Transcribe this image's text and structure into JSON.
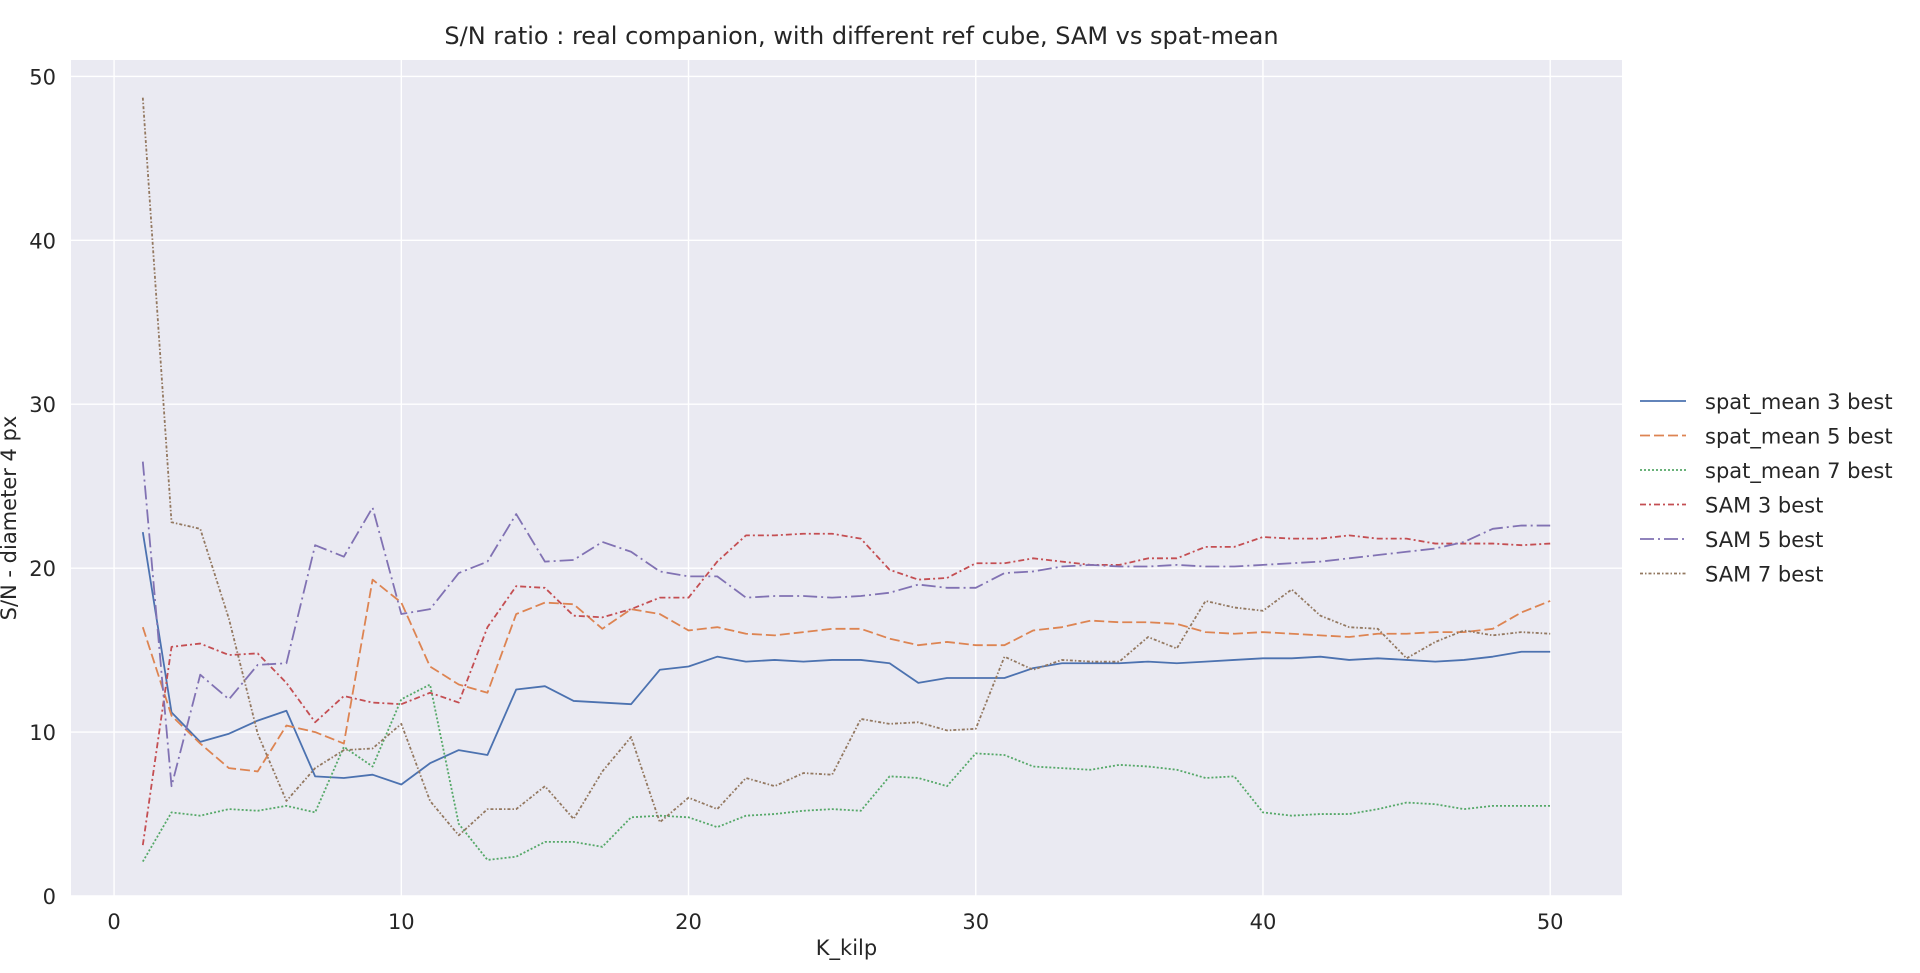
{
  "chart_data": {
    "type": "line",
    "title": "S/N ratio : real companion, with different ref cube, SAM vs spat-mean",
    "xlabel": "K_kilp",
    "ylabel": "S/N - diameter 4 px",
    "xlim": [
      -1.5,
      52.5
    ],
    "ylim": [
      0,
      51
    ],
    "xticks": [
      0,
      10,
      20,
      30,
      40,
      50
    ],
    "yticks": [
      0,
      10,
      20,
      30,
      40,
      50
    ],
    "grid": true,
    "legend_position": "right-outside",
    "x": [
      1,
      2,
      3,
      4,
      5,
      6,
      7,
      8,
      9,
      10,
      11,
      12,
      13,
      14,
      15,
      16,
      17,
      18,
      19,
      20,
      21,
      22,
      23,
      24,
      25,
      26,
      27,
      28,
      29,
      30,
      31,
      32,
      33,
      34,
      35,
      36,
      37,
      38,
      39,
      40,
      41,
      42,
      43,
      44,
      45,
      46,
      47,
      48,
      49,
      50
    ],
    "series": [
      {
        "name": "spat_mean 3 best",
        "color": "#4c72b0",
        "dash": "solid",
        "values": [
          22.2,
          11.2,
          9.4,
          9.9,
          10.7,
          11.3,
          7.3,
          7.2,
          7.4,
          6.8,
          8.1,
          8.9,
          8.6,
          12.6,
          12.8,
          11.9,
          11.8,
          11.7,
          13.8,
          14.0,
          14.6,
          14.3,
          14.4,
          14.3,
          14.4,
          14.4,
          14.2,
          13.0,
          13.3,
          13.3,
          13.3,
          13.9,
          14.2,
          14.2,
          14.2,
          14.3,
          14.2,
          14.3,
          14.4,
          14.5,
          14.5,
          14.6,
          14.4,
          14.5,
          14.4,
          14.3,
          14.4,
          14.6,
          14.9,
          14.9
        ]
      },
      {
        "name": "spat_mean 5 best",
        "color": "#dd8452",
        "dash": "dashed",
        "values": [
          16.4,
          11.0,
          9.3,
          7.8,
          7.6,
          10.4,
          10.0,
          9.3,
          19.3,
          17.9,
          14.0,
          12.9,
          12.4,
          17.2,
          17.9,
          17.8,
          16.3,
          17.5,
          17.2,
          16.2,
          16.4,
          16.0,
          15.9,
          16.1,
          16.3,
          16.3,
          15.7,
          15.3,
          15.5,
          15.3,
          15.3,
          16.2,
          16.4,
          16.8,
          16.7,
          16.7,
          16.6,
          16.1,
          16.0,
          16.1,
          16.0,
          15.9,
          15.8,
          16.0,
          16.0,
          16.1,
          16.1,
          16.3,
          17.3,
          18.0
        ]
      },
      {
        "name": "spat_mean 7 best",
        "color": "#55a868",
        "dash": "dotted",
        "values": [
          2.1,
          5.1,
          4.9,
          5.3,
          5.2,
          5.5,
          5.1,
          9.1,
          7.9,
          12.0,
          12.9,
          4.4,
          2.2,
          2.4,
          3.3,
          3.3,
          3.0,
          4.8,
          4.9,
          4.8,
          4.2,
          4.9,
          5.0,
          5.2,
          5.3,
          5.2,
          7.3,
          7.2,
          6.7,
          8.7,
          8.6,
          7.9,
          7.8,
          7.7,
          8.0,
          7.9,
          7.7,
          7.2,
          7.3,
          5.1,
          4.9,
          5.0,
          5.0,
          5.3,
          5.7,
          5.6,
          5.3,
          5.5,
          5.5,
          5.5
        ]
      },
      {
        "name": "SAM 3 best",
        "color": "#c44e52",
        "dash": "dashdot",
        "values": [
          3.1,
          15.2,
          15.4,
          14.7,
          14.8,
          13.0,
          10.6,
          12.2,
          11.8,
          11.7,
          12.4,
          11.8,
          16.4,
          18.9,
          18.8,
          17.1,
          17.0,
          17.5,
          18.2,
          18.2,
          20.4,
          22.0,
          22.0,
          22.1,
          22.1,
          21.8,
          19.9,
          19.3,
          19.4,
          20.3,
          20.3,
          20.6,
          20.4,
          20.2,
          20.2,
          20.6,
          20.6,
          21.3,
          21.3,
          21.9,
          21.8,
          21.8,
          22.0,
          21.8,
          21.8,
          21.5,
          21.5,
          21.5,
          21.4,
          21.5
        ]
      },
      {
        "name": "SAM 5 best",
        "color": "#8172b3",
        "dash": "longdashdot",
        "values": [
          26.5,
          6.7,
          13.5,
          12.0,
          14.1,
          14.2,
          21.4,
          20.7,
          23.7,
          17.2,
          17.5,
          19.7,
          20.4,
          23.3,
          20.4,
          20.5,
          21.6,
          21.0,
          19.8,
          19.5,
          19.5,
          18.2,
          18.3,
          18.3,
          18.2,
          18.3,
          18.5,
          19.0,
          18.8,
          18.8,
          19.7,
          19.8,
          20.1,
          20.2,
          20.1,
          20.1,
          20.2,
          20.1,
          20.1,
          20.2,
          20.3,
          20.4,
          20.6,
          20.8,
          21.0,
          21.2,
          21.6,
          22.4,
          22.6,
          22.6
        ]
      },
      {
        "name": "SAM 7 best",
        "color": "#937860",
        "dash": "densedashdot",
        "values": [
          48.7,
          22.8,
          22.4,
          16.9,
          9.9,
          5.8,
          7.8,
          8.9,
          9.0,
          10.5,
          5.8,
          3.7,
          5.3,
          5.3,
          6.7,
          4.7,
          7.6,
          9.7,
          4.5,
          6.0,
          5.3,
          7.2,
          6.7,
          7.5,
          7.4,
          10.8,
          10.5,
          10.6,
          10.1,
          10.2,
          14.6,
          13.8,
          14.4,
          14.3,
          14.3,
          15.8,
          15.1,
          18.0,
          17.6,
          17.4,
          18.7,
          17.1,
          16.4,
          16.3,
          14.5,
          15.5,
          16.2,
          15.9,
          16.1,
          16.0
        ]
      }
    ]
  }
}
